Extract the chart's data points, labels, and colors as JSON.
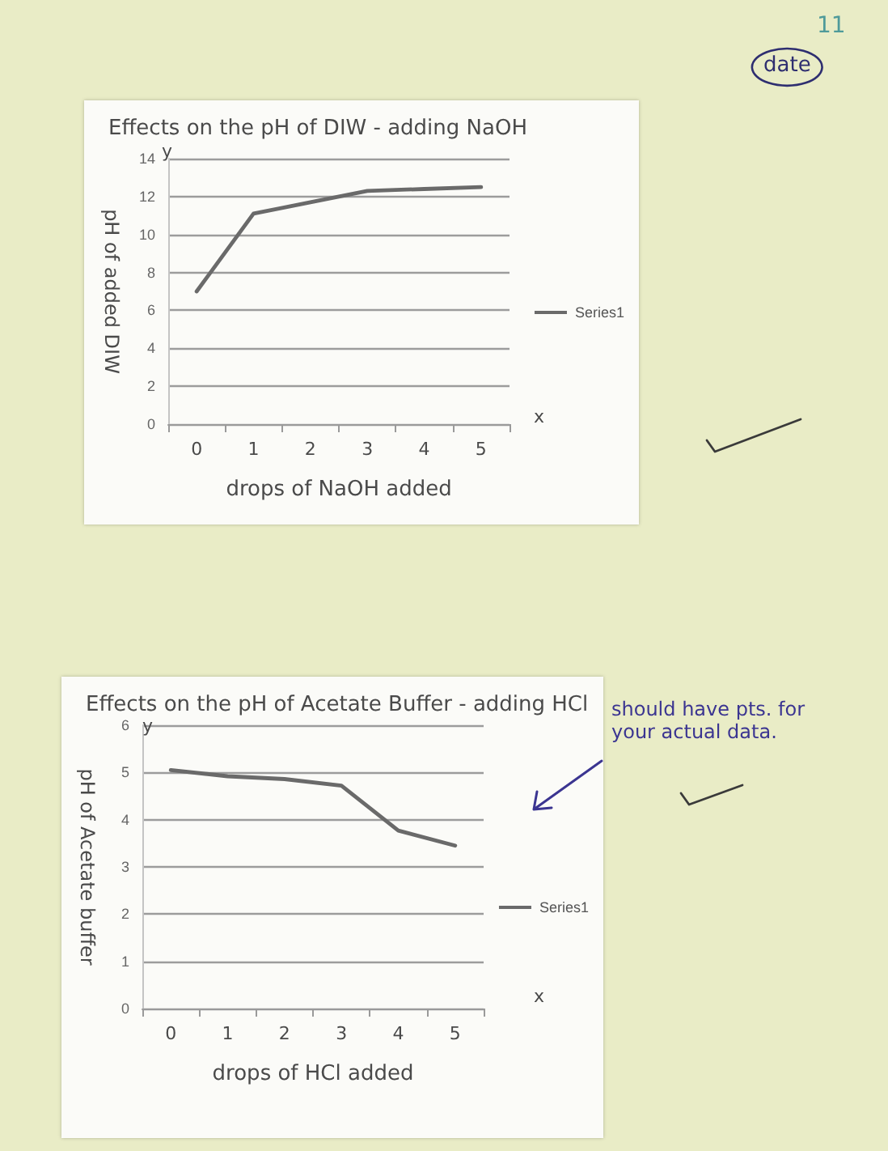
{
  "chart_data": [
    {
      "type": "line",
      "title": "Effects on the pH of DIW - adding NaOH",
      "xlabel": "drops of NaOH added",
      "ylabel": "pH of added DIW",
      "categories": [
        "0",
        "1",
        "2",
        "3",
        "4",
        "5"
      ],
      "series": [
        {
          "name": "Series1",
          "color": "#6a6a6a",
          "values": [
            7.0,
            11.1,
            11.7,
            12.3,
            12.4,
            12.5
          ]
        }
      ],
      "ylim": [
        0,
        14
      ],
      "yticks": [
        0,
        2,
        4,
        6,
        8,
        10,
        12,
        14
      ],
      "grid": "y",
      "legend": "right",
      "marker": "none",
      "annotations": [
        "y",
        "x",
        "11",
        "date"
      ]
    },
    {
      "type": "line",
      "title": "Effects on the pH of Acetate Buffer - adding HCl",
      "xlabel": "drops of HCl added",
      "ylabel": "pH of Acetate buffer",
      "categories": [
        "0",
        "1",
        "2",
        "3",
        "4",
        "5"
      ],
      "series": [
        {
          "name": "Series1",
          "color": "#6a6a6a",
          "values": [
            5.05,
            4.92,
            4.86,
            4.72,
            3.77,
            3.45
          ]
        }
      ],
      "ylim": [
        0,
        6
      ],
      "yticks": [
        0,
        1,
        2,
        3,
        4,
        5,
        6
      ],
      "grid": "y",
      "legend": "right",
      "marker": "none",
      "annotations": [
        "y",
        "x",
        "should have pts. for your actual data."
      ]
    }
  ]
}
